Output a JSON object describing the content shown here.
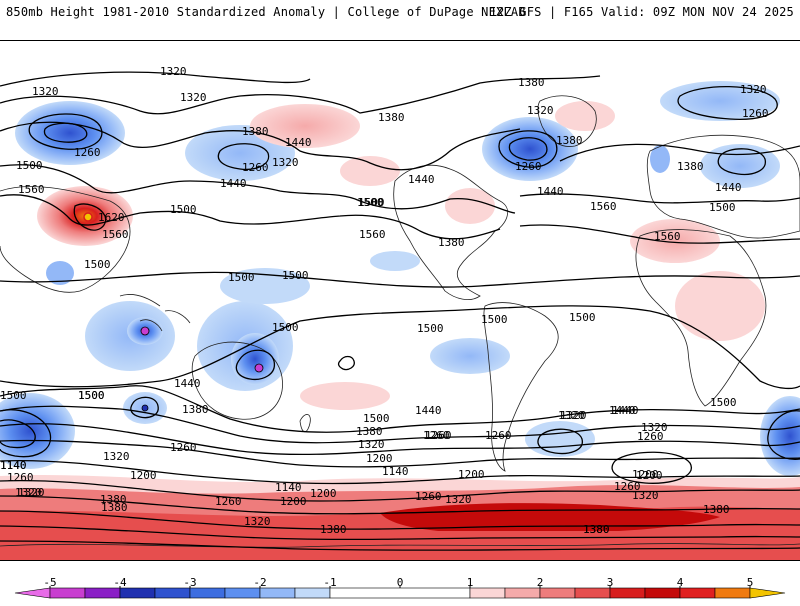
{
  "header": {
    "title": "850mb Height 1981-2010 Standardized Anomaly | College of DuPage NEXLAB",
    "run": "12Z GFS | F165 Valid: 09Z MON NOV 24 2025"
  },
  "colorbar": {
    "min": -5.5,
    "max": 5.5,
    "ticks": [
      "-5",
      "-4",
      "-3",
      "-2",
      "-1",
      "0",
      "1",
      "2",
      "3",
      "4",
      "5"
    ],
    "tick_values": [
      -5,
      -4,
      -3,
      -2,
      -1,
      0,
      1,
      2,
      3,
      4,
      5
    ],
    "bins": [
      {
        "from": -5.5,
        "to": -5,
        "color": "#e86be8"
      },
      {
        "from": -5,
        "to": -4.5,
        "color": "#c83ed0"
      },
      {
        "from": -4.5,
        "to": -4,
        "color": "#8a1fc6"
      },
      {
        "from": -4,
        "to": -3.5,
        "color": "#2030b0"
      },
      {
        "from": -3.5,
        "to": -3,
        "color": "#2f52cf"
      },
      {
        "from": -3,
        "to": -2.5,
        "color": "#3d6de0"
      },
      {
        "from": -2.5,
        "to": -2,
        "color": "#5d8ff0"
      },
      {
        "from": -2,
        "to": -1.5,
        "color": "#93b8f7"
      },
      {
        "from": -1.5,
        "to": -1,
        "color": "#c2daf9"
      },
      {
        "from": -1,
        "to": 1,
        "color": "#ffffff"
      },
      {
        "from": 1,
        "to": 1.5,
        "color": "#fbd6d6"
      },
      {
        "from": 1.5,
        "to": 2,
        "color": "#f5aaaa"
      },
      {
        "from": 2,
        "to": 2.5,
        "color": "#ee7c7c"
      },
      {
        "from": 2.5,
        "to": 3,
        "color": "#e64e4e"
      },
      {
        "from": 3,
        "to": 3.5,
        "color": "#d81e1e"
      },
      {
        "from": 3.5,
        "to": 4,
        "color": "#c40a0a"
      },
      {
        "from": 4,
        "to": 4.5,
        "color": "#e02020"
      },
      {
        "from": 4.5,
        "to": 5,
        "color": "#f07a10"
      },
      {
        "from": 5,
        "to": 5.5,
        "color": "#f3c400"
      }
    ]
  },
  "contour_labels": [
    "1320",
    "1320",
    "1320",
    "1380",
    "1260",
    "1500",
    "1560",
    "1500",
    "1380",
    "1260",
    "1440",
    "1320",
    "1440",
    "1500",
    "1380",
    "1320",
    "1620",
    "1560",
    "1500",
    "1440",
    "1500",
    "1500",
    "1560",
    "1380",
    "1260",
    "1440",
    "1380",
    "1320",
    "1260",
    "1560",
    "1380",
    "1440",
    "1500",
    "1560",
    "1500",
    "1500",
    "1500",
    "1500",
    "1500",
    "1500",
    "1500",
    "1440",
    "1380",
    "1500",
    "1320",
    "1260",
    "1140",
    "1320",
    "1260",
    "1200",
    "1140",
    "1380",
    "1200",
    "1260",
    "1140",
    "1200",
    "1260",
    "1320",
    "1500",
    "1440",
    "1380",
    "1320",
    "1260",
    "1200",
    "1140",
    "1260",
    "1320",
    "1380",
    "1440",
    "1380",
    "1320",
    "1200",
    "1260",
    "1320",
    "1380",
    "1320",
    "1260",
    "1200",
    "1500",
    "1380",
    "1440",
    "1320",
    "1260",
    "1200",
    "1320",
    "1380"
  ]
}
